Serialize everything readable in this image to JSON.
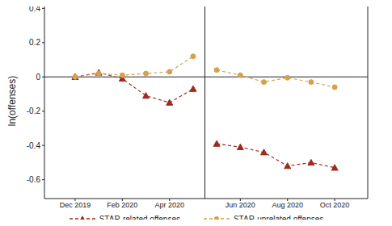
{
  "chart_data": {
    "type": "line",
    "y_label": "ln(offenses)",
    "categories": [
      "Dec 2019",
      null,
      "Feb 2020",
      null,
      "Apr 2020",
      null,
      null,
      "Jun 2020",
      null,
      "Aug 2020",
      null,
      "Oct 2020"
    ],
    "x": [
      0,
      1,
      2,
      3,
      4,
      5,
      6,
      7,
      8,
      9,
      10,
      11
    ],
    "xlim": [
      -1.3,
      12.4
    ],
    "xticks": [
      {
        "value": 0,
        "label": "Dec 2019"
      },
      {
        "value": 2,
        "label": "Feb 2020"
      },
      {
        "value": 4,
        "label": "Apr 2020"
      },
      {
        "value": 7,
        "label": "Jun 2020"
      },
      {
        "value": 9,
        "label": "Aug 2020"
      },
      {
        "value": 11,
        "label": "Oct 2020"
      }
    ],
    "ylim": [
      -0.71,
      0.43
    ],
    "yticks": [
      -0.6,
      -0.4,
      -0.2,
      0,
      0.2,
      0.4
    ],
    "vline": 5.5,
    "hline": 0,
    "grid": false,
    "legend": "bottom",
    "series": [
      {
        "name": "STAR-related offenses",
        "color": "#9e2a1e",
        "marker": "triangle",
        "line_style": "dashed",
        "values": [
          0,
          0.025,
          -0.01,
          -0.11,
          -0.15,
          -0.07,
          -0.39,
          -0.41,
          -0.44,
          -0.52,
          -0.5,
          -0.53
        ]
      },
      {
        "name": "STAR-unrelated offenses",
        "color": "#d4a24c",
        "marker": "circle",
        "line_style": "dashed",
        "values": [
          0,
          0.02,
          0.01,
          0.02,
          0.03,
          0.12,
          0.04,
          0.01,
          -0.03,
          -0.005,
          -0.03,
          -0.06
        ]
      }
    ]
  }
}
